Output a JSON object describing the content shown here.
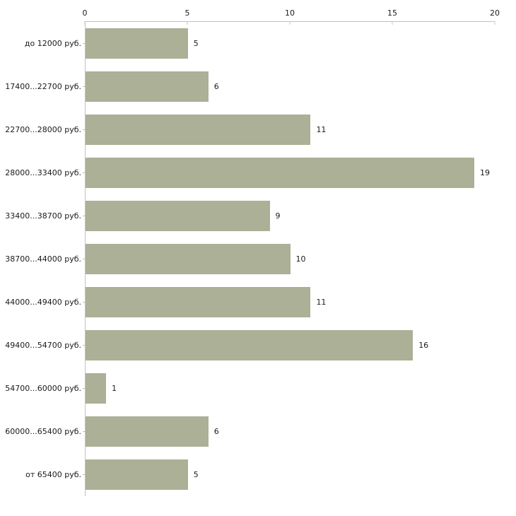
{
  "chart_data": {
    "type": "bar",
    "orientation": "horizontal",
    "title": "",
    "categories": [
      "до 12000 руб.",
      "17400...22700 руб.",
      "22700...28000 руб.",
      "28000...33400 руб.",
      "33400...38700 руб.",
      "38700...44000 руб.",
      "44000...49400 руб.",
      "49400...54700 руб.",
      "54700...60000 руб.",
      "60000...65400 руб.",
      "от 65400 руб."
    ],
    "values": [
      5,
      6,
      11,
      19,
      9,
      10,
      11,
      16,
      1,
      6,
      5
    ],
    "value_labels": [
      "5",
      "6",
      "11",
      "19",
      "9",
      "10",
      "11",
      "16",
      "1",
      "6",
      "5"
    ],
    "x_axis": {
      "position": "top",
      "min": 0,
      "max": 20,
      "ticks": [
        0,
        5,
        10,
        15,
        20
      ],
      "tick_labels": [
        "0",
        "5",
        "10",
        "15",
        "20"
      ]
    },
    "ylabel": "",
    "xlabel": "",
    "legend": false,
    "grid": false,
    "colors": {
      "bar": "#abb096",
      "axis": "#c2c2c2",
      "tick": "#c9cba9",
      "text": "#1a1a1a",
      "background": "#ffffff"
    }
  }
}
